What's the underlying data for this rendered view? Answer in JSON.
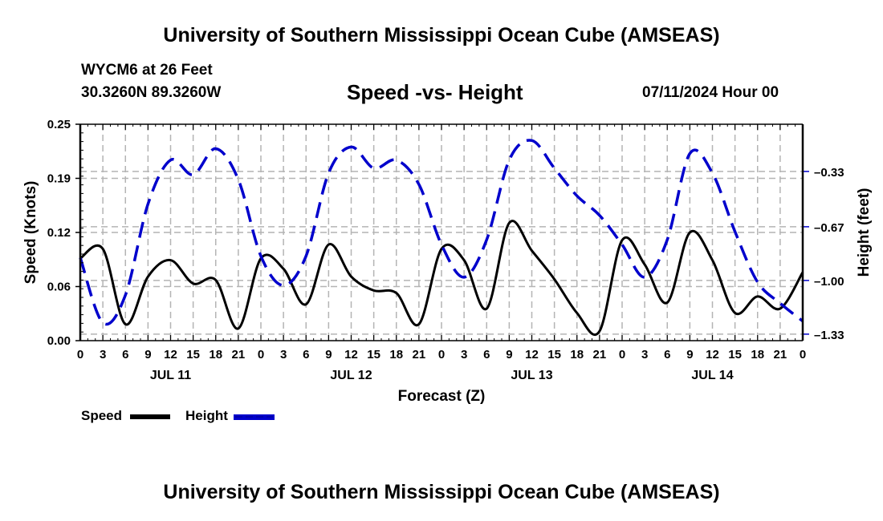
{
  "header": {
    "title": "University of Southern Mississippi Ocean Cube (AMSEAS)",
    "station": "WYCM6 at 26 Feet",
    "coords": "30.3260N  89.3260W",
    "subtitle": "Speed -vs- Height",
    "datetime": "07/11/2024 Hour 00"
  },
  "footer": {
    "title": "University of Southern Mississippi Ocean Cube (AMSEAS)"
  },
  "legend": {
    "speed_label": "Speed",
    "height_label": "Height"
  },
  "chart_data": {
    "type": "line",
    "title": "Speed -vs- Height",
    "xlabel": "Forecast (Z)",
    "ylabel": "Speed (Knots)",
    "y2label": "Height (feet)",
    "x_unit": "forecast hour",
    "xlim": [
      0,
      96
    ],
    "ylim": [
      0.0,
      0.25
    ],
    "y2lim": [
      -1.37,
      -0.04
    ],
    "grid": true,
    "legend_position": "bottom-left",
    "x_tick_labels": [
      "0",
      "3",
      "6",
      "9",
      "12",
      "15",
      "18",
      "21",
      "0",
      "3",
      "6",
      "9",
      "12",
      "15",
      "18",
      "21",
      "0",
      "3",
      "6",
      "9",
      "12",
      "15",
      "18",
      "21",
      "0",
      "3",
      "6",
      "9",
      "12",
      "15",
      "18",
      "21",
      "0"
    ],
    "date_labels": [
      {
        "label": "JUL 11",
        "hour": 12
      },
      {
        "label": "JUL 12",
        "hour": 36
      },
      {
        "label": "JUL 13",
        "hour": 60
      },
      {
        "label": "JUL 14",
        "hour": 84
      }
    ],
    "y_tick_labels": [
      "0.00",
      "0.06",
      "0.12",
      "0.19",
      "0.25"
    ],
    "y_ticks": [
      0.0,
      0.0625,
      0.125,
      0.1875,
      0.25
    ],
    "y2_tick_labels": [
      "-0.33",
      "-0.67",
      "-1.00",
      "-1.33"
    ],
    "y2_ticks": [
      -0.33,
      -0.67,
      -1.0,
      -1.33
    ],
    "colors": {
      "speed": "#000000",
      "height": "#0000cc",
      "grid": "#b4b4b4"
    },
    "x": [
      0,
      3,
      6,
      9,
      12,
      15,
      18,
      21,
      24,
      27,
      30,
      33,
      36,
      39,
      42,
      45,
      48,
      51,
      54,
      57,
      60,
      63,
      66,
      69,
      72,
      75,
      78,
      81,
      84,
      87,
      90,
      93,
      96
    ],
    "series": [
      {
        "name": "Speed",
        "axis": "left",
        "style": "solid",
        "values": [
          0.095,
          0.106,
          0.019,
          0.074,
          0.093,
          0.066,
          0.07,
          0.014,
          0.095,
          0.083,
          0.042,
          0.111,
          0.074,
          0.058,
          0.055,
          0.019,
          0.106,
          0.093,
          0.037,
          0.136,
          0.104,
          0.071,
          0.032,
          0.011,
          0.116,
          0.088,
          0.044,
          0.125,
          0.093,
          0.032,
          0.051,
          0.037,
          0.079
        ]
      },
      {
        "name": "Height",
        "axis": "right",
        "style": "dashed",
        "values": [
          -0.86,
          -1.26,
          -1.09,
          -0.53,
          -0.26,
          -0.35,
          -0.19,
          -0.38,
          -0.85,
          -1.03,
          -0.85,
          -0.34,
          -0.18,
          -0.31,
          -0.26,
          -0.41,
          -0.78,
          -0.98,
          -0.75,
          -0.26,
          -0.14,
          -0.31,
          -0.48,
          -0.6,
          -0.78,
          -0.98,
          -0.75,
          -0.22,
          -0.34,
          -0.7,
          -1.01,
          -1.14,
          -1.25
        ]
      }
    ]
  }
}
